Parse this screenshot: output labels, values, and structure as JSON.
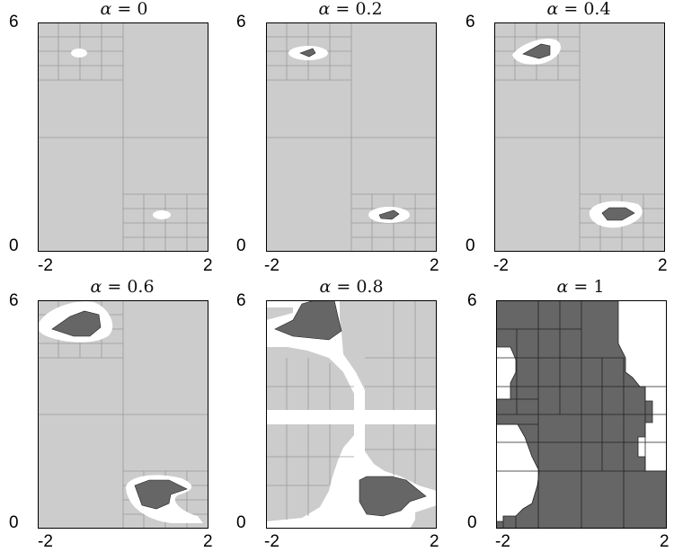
{
  "panels": [
    {
      "symbol": "α",
      "eq": " = ",
      "value": "0"
    },
    {
      "symbol": "α",
      "eq": " = ",
      "value": "0.2"
    },
    {
      "symbol": "α",
      "eq": " = ",
      "value": "0.4"
    },
    {
      "symbol": "α",
      "eq": " = ",
      "value": "0.6"
    },
    {
      "symbol": "α",
      "eq": " = ",
      "value": "0.8"
    },
    {
      "symbol": "α",
      "eq": " = ",
      "value": "1"
    }
  ],
  "axes": {
    "y_top": "6",
    "y_bottom": "0",
    "x_left": "-2",
    "x_right": "2"
  },
  "colors": {
    "undecided_region": "#cccccc",
    "boundary_region": "#ffffff",
    "inside_region": "#666666",
    "grid_line": "#9a9a9a"
  }
}
